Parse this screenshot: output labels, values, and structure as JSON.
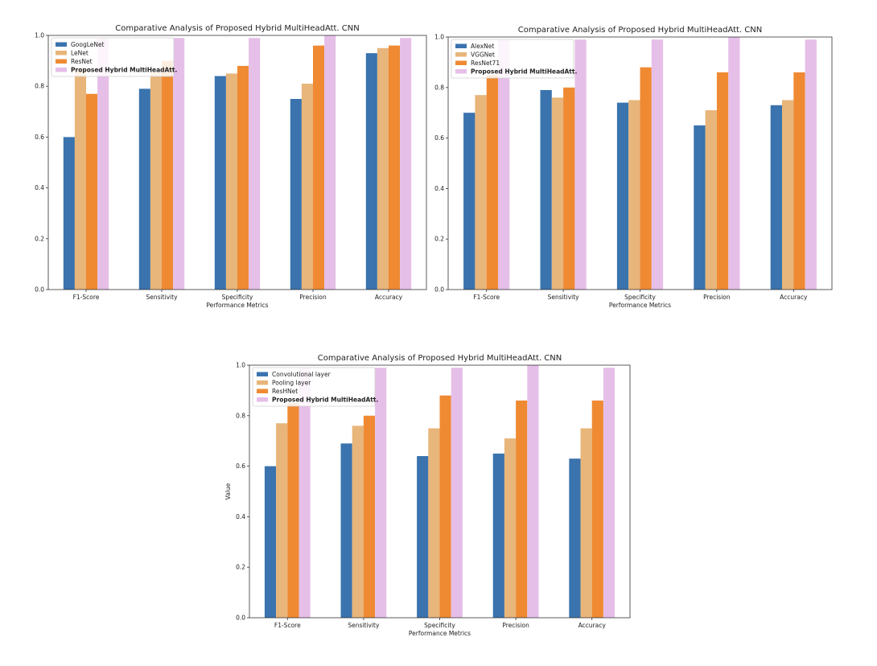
{
  "chart_data": [
    {
      "type": "bar",
      "title": "Comparative Analysis of Proposed Hybrid MultiHeadAtt. CNN",
      "xlabel": "Performance Metrics",
      "ylabel": "",
      "ylim": [
        0,
        1.0
      ],
      "yticks": [
        "0.0",
        "0.2",
        "0.4",
        "0.6",
        "0.8",
        "1.0"
      ],
      "legend_position": "top-left",
      "categories": [
        "F1-Score",
        "Sensitivity",
        "Specificity",
        "Precision",
        "Accuracy"
      ],
      "series": [
        {
          "name": "GoogLeNet",
          "color": "#3a73ae",
          "values": [
            0.6,
            0.79,
            0.84,
            0.75,
            0.93
          ]
        },
        {
          "name": "LeNet",
          "color": "#e8b57a",
          "values": [
            0.87,
            0.86,
            0.85,
            0.81,
            0.95
          ]
        },
        {
          "name": "ResNet",
          "color": "#ef8a33",
          "values": [
            0.77,
            0.9,
            0.88,
            0.96,
            0.96
          ]
        },
        {
          "name": "Proposed Hybrid MultiHeadAtt.",
          "color": "#e6bfe8",
          "values": [
            0.99,
            0.99,
            0.99,
            1.0,
            0.99
          ],
          "bold": true
        }
      ]
    },
    {
      "type": "bar",
      "title": "Comparative Analysis of Proposed Hybrid MultiHeadAtt. CNN",
      "xlabel": "Performance Metrics",
      "ylabel": "",
      "ylim": [
        0,
        1.0
      ],
      "yticks": [
        "0.0",
        "0.2",
        "0.4",
        "0.6",
        "0.8",
        "1.0"
      ],
      "legend_position": "top-left",
      "categories": [
        "F1-Score",
        "Sensitivity",
        "Specificity",
        "Precision",
        "Accuracy"
      ],
      "series": [
        {
          "name": "AlexNet",
          "color": "#3a73ae",
          "values": [
            0.7,
            0.79,
            0.74,
            0.65,
            0.73
          ]
        },
        {
          "name": "VGGNet",
          "color": "#e8b57a",
          "values": [
            0.77,
            0.76,
            0.75,
            0.71,
            0.75
          ]
        },
        {
          "name": "ResNet71",
          "color": "#ef8a33",
          "values": [
            0.85,
            0.8,
            0.88,
            0.86,
            0.86
          ]
        },
        {
          "name": "Proposed Hybrid MultiHeadAtt.",
          "color": "#e6bfe8",
          "values": [
            0.99,
            0.99,
            0.99,
            1.0,
            0.99
          ],
          "bold": true
        }
      ]
    },
    {
      "type": "bar",
      "title": "Comparative Analysis of Proposed Hybrid MultiHeadAtt. CNN",
      "xlabel": "Performance Metrics",
      "ylabel": "Value",
      "ylim": [
        0,
        1.0
      ],
      "yticks": [
        "0.0",
        "0.2",
        "0.4",
        "0.6",
        "0.8",
        "1.0"
      ],
      "legend_position": "top-left",
      "categories": [
        "F1-Score",
        "Sensitivity",
        "Specificity",
        "Precision",
        "Accuracy"
      ],
      "series": [
        {
          "name": "Convolutional layer",
          "color": "#3a73ae",
          "values": [
            0.6,
            0.69,
            0.64,
            0.65,
            0.63
          ]
        },
        {
          "name": "Pooling layer",
          "color": "#e8b57a",
          "values": [
            0.77,
            0.76,
            0.75,
            0.71,
            0.75
          ]
        },
        {
          "name": "ResHNet",
          "color": "#ef8a33",
          "values": [
            0.85,
            0.8,
            0.88,
            0.86,
            0.86
          ]
        },
        {
          "name": "Proposed Hybrid MultiHeadAtt.",
          "color": "#e6bfe8",
          "values": [
            0.99,
            0.99,
            0.99,
            1.0,
            0.99
          ],
          "bold": true
        }
      ]
    }
  ]
}
